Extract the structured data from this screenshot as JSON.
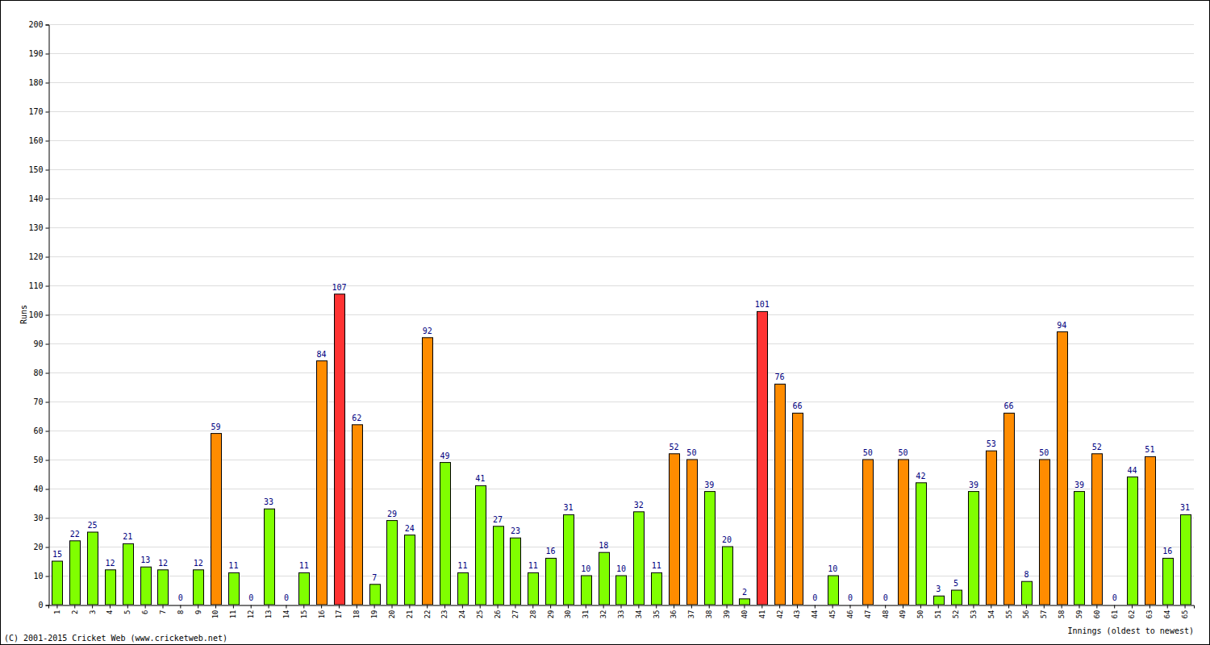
{
  "chart_data": {
    "type": "bar",
    "x_label": "Innings (oldest to newest)",
    "y_label": "Runs",
    "annotations": [
      "(C) 2001-2015 Cricket Web (www.cricketweb.net)"
    ],
    "categories": [
      "1",
      "2",
      "3",
      "4",
      "5",
      "6",
      "7",
      "8",
      "9",
      "10",
      "11",
      "12",
      "13",
      "14",
      "15",
      "16",
      "17",
      "18",
      "19",
      "20",
      "21",
      "22",
      "23",
      "24",
      "25",
      "26",
      "27",
      "28",
      "29",
      "30",
      "31",
      "32",
      "33",
      "34",
      "35",
      "36",
      "37",
      "38",
      "39",
      "40",
      "41",
      "42",
      "43",
      "44",
      "45",
      "46",
      "47",
      "48",
      "49",
      "50",
      "51",
      "52",
      "53",
      "54",
      "55",
      "56",
      "57",
      "58",
      "59",
      "60",
      "61",
      "62",
      "63",
      "64",
      "65"
    ],
    "values": [
      15,
      22,
      25,
      12,
      21,
      13,
      12,
      0,
      12,
      59,
      11,
      0,
      33,
      0,
      11,
      84,
      107,
      62,
      7,
      29,
      24,
      92,
      49,
      11,
      41,
      27,
      23,
      11,
      16,
      31,
      10,
      18,
      10,
      32,
      11,
      52,
      50,
      39,
      20,
      2,
      101,
      76,
      66,
      0,
      10,
      0,
      50,
      0,
      50,
      42,
      3,
      5,
      39,
      53,
      66,
      8,
      50,
      94,
      39,
      52,
      0,
      44,
      51,
      16,
      31
    ],
    "colors": [
      "#80ff00",
      "#80ff00",
      "#80ff00",
      "#80ff00",
      "#80ff00",
      "#80ff00",
      "#80ff00",
      "#80ff00",
      "#80ff00",
      "#ff8c00",
      "#80ff00",
      "#80ff00",
      "#80ff00",
      "#80ff00",
      "#80ff00",
      "#ff8c00",
      "#ff3333",
      "#ff8c00",
      "#80ff00",
      "#80ff00",
      "#80ff00",
      "#ff8c00",
      "#80ff00",
      "#80ff00",
      "#80ff00",
      "#80ff00",
      "#80ff00",
      "#80ff00",
      "#80ff00",
      "#80ff00",
      "#80ff00",
      "#80ff00",
      "#80ff00",
      "#80ff00",
      "#80ff00",
      "#ff8c00",
      "#ff8c00",
      "#80ff00",
      "#80ff00",
      "#80ff00",
      "#ff3333",
      "#ff8c00",
      "#ff8c00",
      "#80ff00",
      "#80ff00",
      "#80ff00",
      "#ff8c00",
      "#80ff00",
      "#ff8c00",
      "#80ff00",
      "#80ff00",
      "#80ff00",
      "#80ff00",
      "#ff8c00",
      "#ff8c00",
      "#80ff00",
      "#ff8c00",
      "#ff8c00",
      "#80ff00",
      "#ff8c00",
      "#80ff00",
      "#80ff00",
      "#ff8c00",
      "#80ff00",
      "#80ff00"
    ],
    "ylim": [
      0,
      200
    ],
    "yticks": [
      0,
      10,
      20,
      30,
      40,
      50,
      60,
      70,
      80,
      90,
      100,
      110,
      120,
      130,
      140,
      150,
      160,
      170,
      180,
      190,
      200
    ],
    "grid": true,
    "data_labels": true
  }
}
